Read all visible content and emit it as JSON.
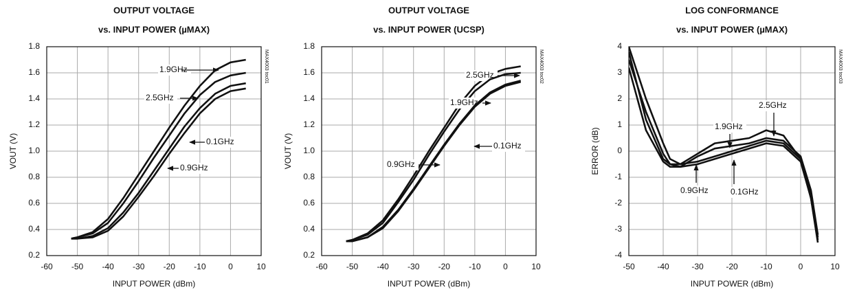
{
  "chart_data": [
    {
      "type": "line",
      "title": "OUTPUT VOLTAGE",
      "subtitle": "vs. INPUT POWER (µMAX)",
      "side_note": "MAX4003 toc01",
      "xlabel": "INPUT POWER (dBm)",
      "ylabel": "VOUT (V)",
      "x": [
        -52,
        -50,
        -45,
        -40,
        -35,
        -30,
        -25,
        -20,
        -15,
        -10,
        -5,
        0,
        5
      ],
      "series": [
        {
          "name": "1.9GHz",
          "color": "#111111",
          "values": [
            0.33,
            0.34,
            0.38,
            0.48,
            0.64,
            0.82,
            1.0,
            1.18,
            1.35,
            1.5,
            1.62,
            1.68,
            1.7
          ]
        },
        {
          "name": "2.5GHz",
          "color": "#111111",
          "values": [
            0.33,
            0.34,
            0.37,
            0.45,
            0.6,
            0.77,
            0.95,
            1.12,
            1.29,
            1.43,
            1.53,
            1.58,
            1.6
          ]
        },
        {
          "name": "0.1GHz",
          "color": "#111111",
          "values": [
            0.33,
            0.33,
            0.35,
            0.41,
            0.53,
            0.68,
            0.85,
            1.02,
            1.19,
            1.33,
            1.44,
            1.5,
            1.52
          ]
        },
        {
          "name": "0.9GHz",
          "color": "#111111",
          "values": [
            0.33,
            0.33,
            0.34,
            0.39,
            0.5,
            0.65,
            0.81,
            0.98,
            1.14,
            1.29,
            1.4,
            1.46,
            1.48
          ]
        }
      ],
      "xlim": [
        -60,
        10
      ],
      "xticks": [
        -60,
        -50,
        -40,
        -30,
        -20,
        -10,
        0,
        10
      ],
      "ylim": [
        0.2,
        1.8
      ],
      "yticks": [
        0.2,
        0.4,
        0.6,
        0.8,
        {
          "value": 1,
          "label": "1.0"
        },
        1.2,
        1.4,
        1.6,
        1.8
      ],
      "grid": true
    },
    {
      "type": "line",
      "title": "OUTPUT VOLTAGE",
      "subtitle": "vs. INPUT POWER (UCSP)",
      "side_note": "MAX4003 toc02",
      "xlabel": "INPUT POWER (dBm)",
      "ylabel": "VOUT (V)",
      "x": [
        -52,
        -50,
        -45,
        -40,
        -35,
        -30,
        -25,
        -20,
        -15,
        -10,
        -5,
        0,
        5
      ],
      "series": [
        {
          "name": "2.5GHz",
          "color": "#111111",
          "values": [
            0.31,
            0.32,
            0.37,
            0.47,
            0.63,
            0.81,
            1.0,
            1.18,
            1.36,
            1.5,
            1.59,
            1.63,
            1.65
          ]
        },
        {
          "name": "1.9GHz",
          "color": "#111111",
          "values": [
            0.31,
            0.32,
            0.36,
            0.45,
            0.61,
            0.78,
            0.97,
            1.15,
            1.32,
            1.46,
            1.55,
            1.59,
            1.6
          ]
        },
        {
          "name": "0.1GHz",
          "color": "#111111",
          "values": [
            0.31,
            0.31,
            0.34,
            0.42,
            0.55,
            0.71,
            0.88,
            1.05,
            1.21,
            1.35,
            1.45,
            1.51,
            1.54
          ]
        },
        {
          "name": "0.9GHz",
          "color": "#111111",
          "values": [
            0.31,
            0.31,
            0.34,
            0.41,
            0.54,
            0.7,
            0.87,
            1.04,
            1.2,
            1.34,
            1.44,
            1.5,
            1.53
          ]
        }
      ],
      "xlim": [
        -60,
        10
      ],
      "xticks": [
        -60,
        -50,
        -40,
        -30,
        -20,
        -10,
        0,
        10
      ],
      "ylim": [
        0.2,
        1.8
      ],
      "yticks": [
        0.2,
        0.4,
        0.6,
        0.8,
        {
          "value": 1,
          "label": "1.0"
        },
        1.2,
        1.4,
        1.6,
        1.8
      ],
      "grid": true
    },
    {
      "type": "line",
      "title": "LOG CONFORMANCE",
      "subtitle": "vs. INPUT POWER (µMAX)",
      "side_note": "MAX4003 toc03",
      "xlabel": "INPUT POWER (dBm)",
      "ylabel": "ERROR (dB)",
      "x": [
        -50,
        -45,
        -40,
        -38,
        -35,
        -30,
        -25,
        -20,
        -15,
        -10,
        -5,
        0,
        3,
        5
      ],
      "series": [
        {
          "name": "2.5GHz",
          "color": "#111111",
          "values": [
            4,
            2,
            0.3,
            -0.3,
            -0.5,
            -0.1,
            0.3,
            0.4,
            0.5,
            0.8,
            0.6,
            -0.3,
            -1.8,
            -3.5
          ]
        },
        {
          "name": "1.9GHz",
          "color": "#111111",
          "values": [
            3.5,
            1.5,
            -0.1,
            -0.5,
            -0.6,
            -0.2,
            0.1,
            0.2,
            0.3,
            0.5,
            0.4,
            -0.2,
            -1.5,
            -3.2
          ]
        },
        {
          "name": "0.9GHz",
          "color": "#111111",
          "values": [
            3.8,
            1.2,
            -0.3,
            -0.5,
            -0.5,
            -0.4,
            -0.2,
            0,
            0.2,
            0.4,
            0.3,
            -0.3,
            -1.6,
            -3.3
          ]
        },
        {
          "name": "0.1GHz",
          "color": "#111111",
          "values": [
            3.2,
            0.8,
            -0.4,
            -0.6,
            -0.6,
            -0.5,
            -0.3,
            -0.1,
            0.1,
            0.3,
            0.2,
            -0.4,
            -1.8,
            -3.4
          ]
        }
      ],
      "xlim": [
        -50,
        10
      ],
      "xticks": [
        -50,
        -40,
        -30,
        -20,
        -10,
        0,
        10
      ],
      "ylim": [
        -4,
        4
      ],
      "yticks": [
        -4,
        -3,
        -2,
        -1,
        0,
        1,
        2,
        3,
        4
      ],
      "grid": true
    }
  ]
}
